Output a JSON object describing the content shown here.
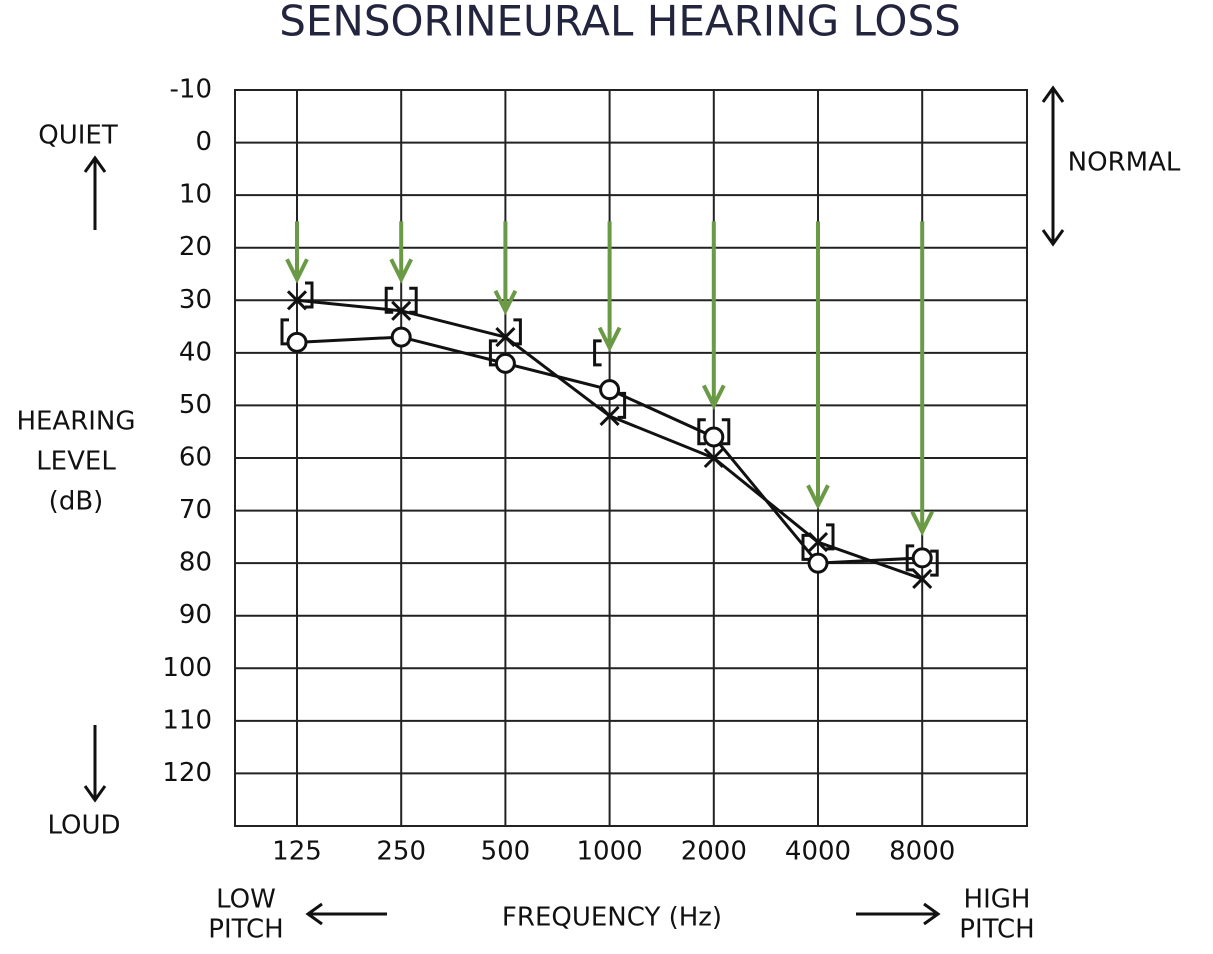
{
  "chart_data": {
    "type": "audiogram",
    "title": "SENSORINEURAL HEARING LOSS",
    "x_label": "FREQUENCY (Hz)",
    "y_label": [
      "HEARING",
      "LEVEL",
      "(dB)"
    ],
    "top_note": "QUIET",
    "bottom_note": "LOUD",
    "range_note": "NORMAL",
    "left_note": [
      "LOW",
      "PITCH"
    ],
    "right_note": [
      "HIGH",
      "PITCH"
    ],
    "categories": [
      "125",
      "250",
      "500",
      "1000",
      "2000",
      "4000",
      "8000"
    ],
    "ylim": [
      -10,
      130
    ],
    "y_inverted": true,
    "yticks": [
      -10,
      0,
      10,
      20,
      30,
      40,
      50,
      60,
      70,
      80,
      90,
      100,
      110,
      120
    ],
    "grid": true,
    "series": [
      {
        "marker": "x",
        "color": "#111111",
        "values": [
          30,
          32,
          37,
          52,
          60,
          76,
          83
        ]
      },
      {
        "marker": "o",
        "color": "#111111",
        "values": [
          38,
          37,
          42,
          47,
          56,
          80,
          79
        ]
      },
      {
        "marker": "[",
        "color": "#111111",
        "values": [
          36,
          30,
          40,
          40,
          55,
          77,
          79
        ],
        "line": false
      },
      {
        "marker": "]",
        "color": "#111111",
        "values": [
          29,
          30,
          36,
          50,
          55,
          75,
          80
        ],
        "line": false
      }
    ],
    "arrows": {
      "color": "#6a9a45",
      "from": 15,
      "values": [
        26,
        26,
        32,
        39,
        50,
        69,
        74
      ]
    }
  }
}
